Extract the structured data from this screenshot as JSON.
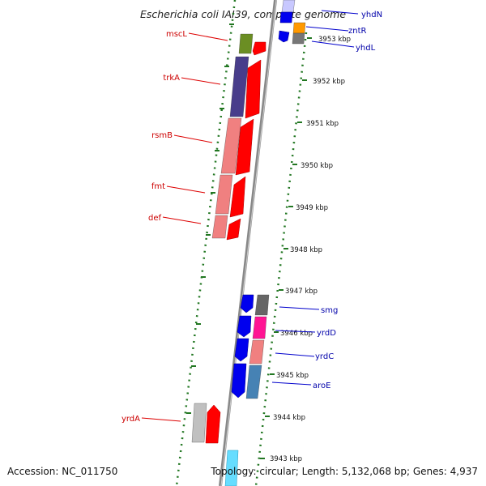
{
  "title": "Escherichia coli IAI39, complete genome",
  "footer": {
    "accession": "Accession: NC_011750",
    "summary": "Topology: circular; Length: 5,132,068 bp; Genes: 4,937"
  },
  "colors": {
    "backbone": "#999999",
    "ticks": "#227722",
    "left_label": "#cc0000",
    "right_label": "#0000aa",
    "leader_left": "#dd0000",
    "leader_right": "#0000cc"
  },
  "scale_labels": [
    "3953 kbp",
    "3952 kbp",
    "3951 kbp",
    "3950 kbp",
    "3949 kbp",
    "3948 kbp",
    "3947 kbp",
    "3946 kbp",
    "3945 kbp",
    "3944 kbp",
    "3943 kbp"
  ],
  "left_genes": [
    {
      "label": "mscL",
      "color": "#6b8e23"
    },
    {
      "label": "trkA",
      "color": "#483d8b"
    },
    {
      "label": "rsmB",
      "color": "#f08080"
    },
    {
      "label": "fmt",
      "color": "#f08080"
    },
    {
      "label": "def",
      "color": "#f08080"
    },
    {
      "label": "yrdA",
      "color": "#c0c0c0"
    }
  ],
  "right_genes": [
    {
      "label": "yhdN",
      "color": "#c8c8ff"
    },
    {
      "label": "zntR",
      "color": "#ff9900"
    },
    {
      "label": "yhdL",
      "color": "#777777"
    },
    {
      "label": "smg",
      "color": "#666666"
    },
    {
      "label": "yrdD",
      "color": "#ff1493"
    },
    {
      "label": "yrdC",
      "color": "#f08080"
    },
    {
      "label": "aroE",
      "color": "#4682b4"
    }
  ]
}
